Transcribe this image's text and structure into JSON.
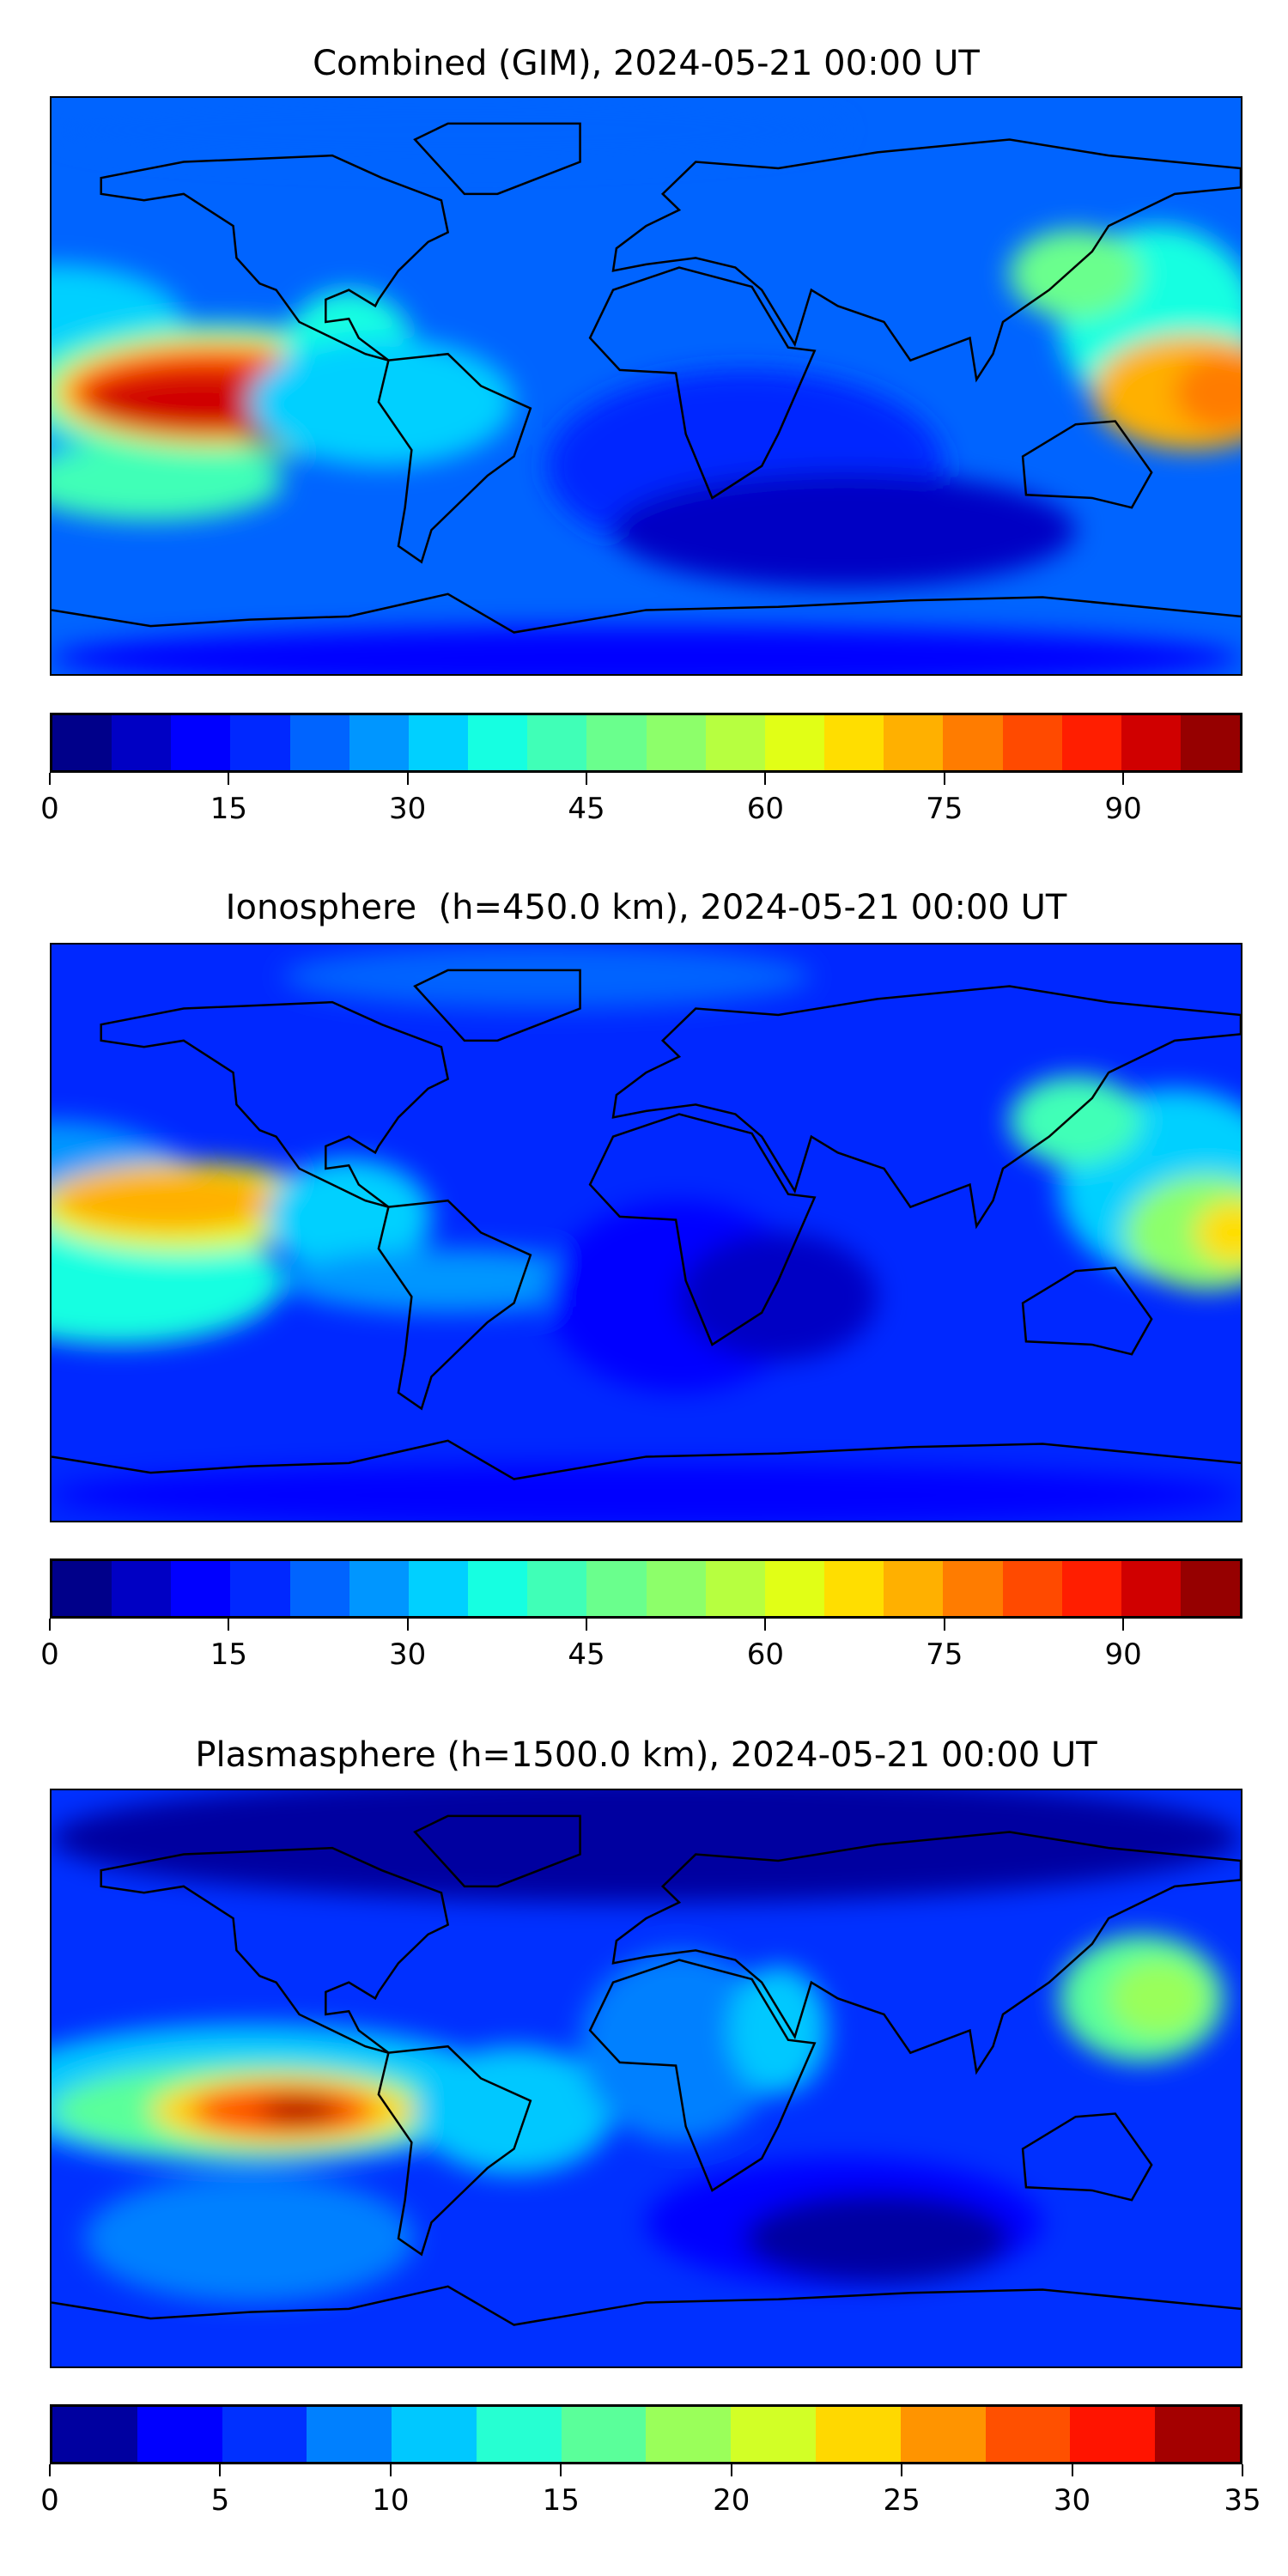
{
  "chart_data": [
    {
      "type": "heatmap",
      "title": "Combined (GIM), 2024-05-21 00:00 UT",
      "colorbar": {
        "range": [
          0,
          100
        ],
        "step": 5,
        "ticks": [
          0,
          15,
          30,
          45,
          60,
          75,
          90
        ],
        "tick_labels": [
          "0",
          "15",
          "30",
          "45",
          "60",
          "75",
          "90"
        ],
        "colors": [
          "#00008a",
          "#0000c4",
          "#0000ff",
          "#0028ff",
          "#0064ff",
          "#0096ff",
          "#00d0ff",
          "#16ffe1",
          "#40ffb7",
          "#6aff8d",
          "#8dff6a",
          "#b7ff40",
          "#e1ff16",
          "#ffde00",
          "#ffb000",
          "#ff7c00",
          "#ff4a00",
          "#ff1e00",
          "#d00000",
          "#960000"
        ]
      },
      "features": {
        "maximum_region": "eastern Pacific, around 0-20°S",
        "secondary_maximum": "western Pacific east of Indonesia"
      }
    },
    {
      "type": "heatmap",
      "title": "Ionosphere  (h=450.0 km), 2024-05-21 00:00 UT",
      "colorbar": {
        "range": [
          0,
          100
        ],
        "step": 5,
        "ticks": [
          0,
          15,
          30,
          45,
          60,
          75,
          90
        ],
        "tick_labels": [
          "0",
          "15",
          "30",
          "45",
          "60",
          "75",
          "90"
        ],
        "colors": [
          "#00008a",
          "#0000c4",
          "#0000ff",
          "#0028ff",
          "#0064ff",
          "#0096ff",
          "#00d0ff",
          "#16ffe1",
          "#40ffb7",
          "#6aff8d",
          "#8dff6a",
          "#b7ff40",
          "#e1ff16",
          "#ffde00",
          "#ffb000",
          "#ff7c00",
          "#ff4a00",
          "#ff1e00",
          "#d00000",
          "#960000"
        ]
      }
    },
    {
      "type": "heatmap",
      "title": "Plasmasphere (h=1500.0 km), 2024-05-21 00:00 UT",
      "colorbar": {
        "range": [
          0,
          35
        ],
        "step": 2.5,
        "ticks": [
          0,
          5,
          10,
          15,
          20,
          25,
          30,
          35
        ],
        "tick_labels": [
          "0",
          "5",
          "10",
          "15",
          "20",
          "25",
          "30",
          "35"
        ],
        "colors": [
          "#0000a0",
          "#0000ff",
          "#0030ff",
          "#0080ff",
          "#00c8ff",
          "#26ffd2",
          "#5aff9a",
          "#9aff5a",
          "#d2ff26",
          "#ffd800",
          "#ff9400",
          "#ff5000",
          "#ff1400",
          "#a40000"
        ]
      }
    }
  ]
}
